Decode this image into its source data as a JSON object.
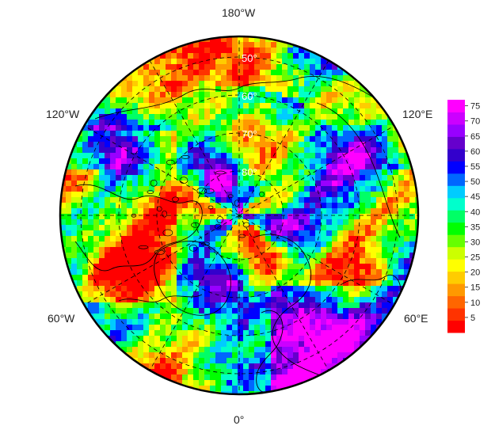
{
  "map": {
    "projection": "polar-stereographic-north",
    "longitude_labels": {
      "top": "180°W",
      "left_upper": "120°W",
      "right_upper": "120°E",
      "left_lower": "60°W",
      "right_lower": "60°E",
      "bottom": "0°"
    },
    "latitude_labels": [
      "50°",
      "60°",
      "70°",
      "80°"
    ],
    "colorbar": {
      "ticks": [
        "75",
        "70",
        "65",
        "60",
        "55",
        "50",
        "45",
        "40",
        "35",
        "30",
        "25",
        "20",
        "15",
        "10",
        "5"
      ],
      "min": 0,
      "max": 77,
      "colors": [
        "#ff0000",
        "#ff3300",
        "#ff6600",
        "#ff9900",
        "#ffcc00",
        "#ffff00",
        "#ccff00",
        "#66ff00",
        "#00ff00",
        "#00ff66",
        "#00ffcc",
        "#00ccff",
        "#0066ff",
        "#0000ff",
        "#3300cc",
        "#6600cc",
        "#9900ff",
        "#cc00ff",
        "#ff00ff"
      ]
    },
    "colors": {
      "coastline": "#000000",
      "graticule": "#000000",
      "boundary": "#000000"
    }
  }
}
